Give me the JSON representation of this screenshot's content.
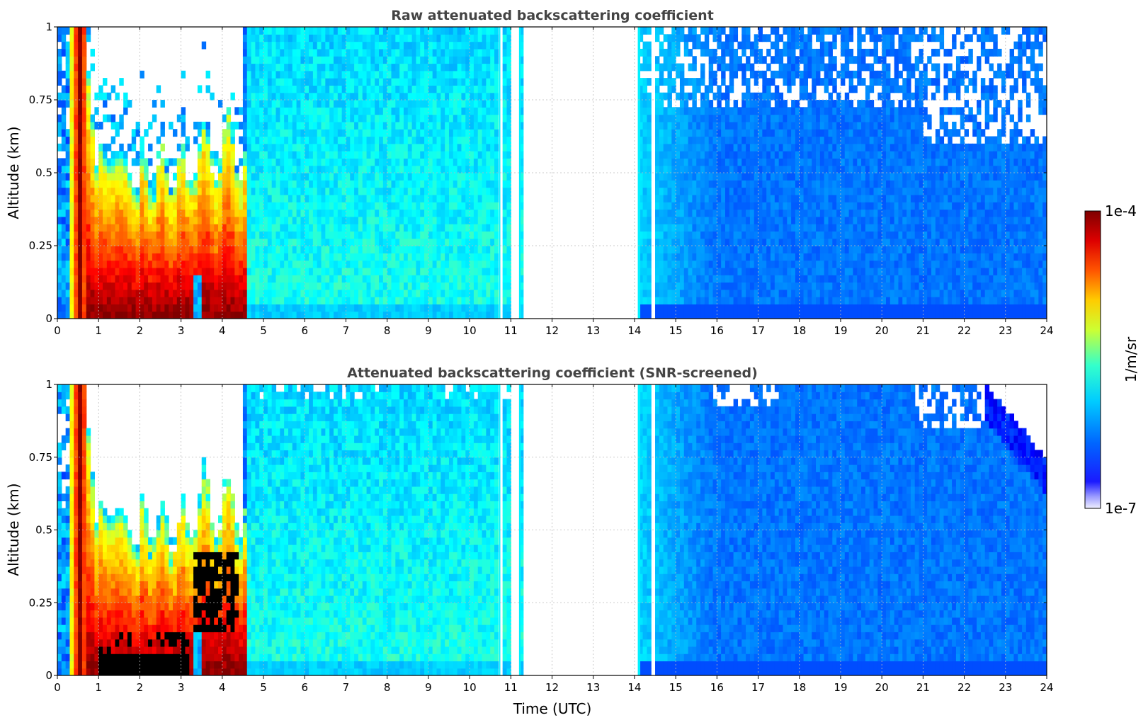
{
  "colors": {
    "colormap": "jet",
    "saturated_mask": "#000000",
    "no_data": "#ffffff",
    "grid": "#bbbbbb",
    "title_text": "#444444"
  },
  "chart_data": [
    {
      "type": "heatmap",
      "title": "Raw attenuated backscattering coefficient",
      "xlabel": "",
      "ylabel": "Altitude (km)",
      "x_ticks": [
        "0",
        "1",
        "2",
        "3",
        "4",
        "5",
        "6",
        "7",
        "8",
        "9",
        "10",
        "11",
        "12",
        "13",
        "14",
        "15",
        "16",
        "17",
        "18",
        "19",
        "20",
        "21",
        "22",
        "23",
        "24"
      ],
      "y_ticks": [
        "0",
        "0.25",
        "0.5",
        "0.75",
        "1"
      ],
      "xlim": [
        0,
        24
      ],
      "ylim": [
        0,
        1
      ],
      "grid": true,
      "scale": "log",
      "screened": false,
      "data_gaps_utc": [
        [
          10.72,
          10.77
        ],
        [
          10.98,
          11.22
        ],
        [
          11.3,
          14.08
        ],
        [
          14.42,
          14.5
        ]
      ],
      "z_summary": [
        {
          "utc_range": [
            0,
            0.6
          ],
          "description": "scattered low-level returns"
        },
        {
          "utc_range": [
            0.4,
            0.8
          ],
          "altitude_km": [
            0,
            1
          ],
          "level": "1e-4"
        },
        {
          "utc_range": [
            0.8,
            4.6
          ],
          "altitude_km": [
            0,
            0.5
          ],
          "level": "high (red/dark red)"
        },
        {
          "utc_range": [
            4.6,
            10.7
          ],
          "level": "mid (cyan)"
        },
        {
          "utc_range": [
            14.5,
            24
          ],
          "level": "low (blue)"
        }
      ]
    },
    {
      "type": "heatmap",
      "title": "Attenuated backscattering coefficient (SNR-screened)",
      "xlabel": "Time (UTC)",
      "ylabel": "Altitude (km)",
      "x_ticks": [
        "0",
        "1",
        "2",
        "3",
        "4",
        "5",
        "6",
        "7",
        "8",
        "9",
        "10",
        "11",
        "12",
        "13",
        "14",
        "15",
        "16",
        "17",
        "18",
        "19",
        "20",
        "21",
        "22",
        "23",
        "24"
      ],
      "y_ticks": [
        "0",
        "0.25",
        "0.5",
        "0.75",
        "1"
      ],
      "xlim": [
        0,
        24
      ],
      "ylim": [
        0,
        1
      ],
      "grid": true,
      "scale": "log",
      "screened": true,
      "data_gaps_utc": [
        [
          10.72,
          10.77
        ],
        [
          10.98,
          11.22
        ],
        [
          11.3,
          14.08
        ],
        [
          14.42,
          14.5
        ]
      ],
      "z_summary": [
        {
          "utc_range": [
            0.4,
            0.8
          ],
          "altitude_km": [
            0,
            1
          ],
          "level": "1e-4"
        },
        {
          "utc_range": [
            1.0,
            3.2
          ],
          "altitude_km": [
            0,
            0.08
          ],
          "level": "saturated (black)"
        },
        {
          "utc_range": [
            3.3,
            4.4
          ],
          "altitude_km": [
            0.15,
            0.4
          ],
          "level": "saturated (black)"
        },
        {
          "utc_range": [
            4.6,
            10.7
          ],
          "level": "mid (cyan)"
        },
        {
          "utc_range": [
            14.5,
            24
          ],
          "level": "low (blue)"
        }
      ]
    }
  ],
  "colorbar": {
    "label": "1/m/sr",
    "max_label": "1e-4",
    "min_label": "1e-7",
    "scale": "log",
    "range": [
      "1e-7",
      "1e-4"
    ]
  }
}
